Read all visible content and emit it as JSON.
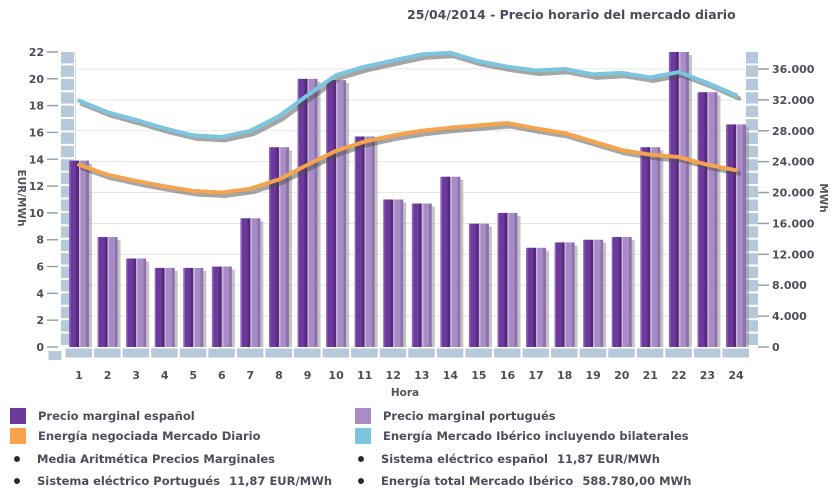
{
  "title": "25/04/2014 - Precio horario del mercado diario",
  "chart_data": {
    "type": "bar+line combo",
    "title": "25/04/2014 - Precio horario del mercado diario",
    "categories": [
      "1",
      "2",
      "3",
      "4",
      "5",
      "6",
      "7",
      "8",
      "9",
      "10",
      "11",
      "12",
      "13",
      "14",
      "15",
      "16",
      "17",
      "18",
      "19",
      "20",
      "21",
      "22",
      "23",
      "24"
    ],
    "x_axis": {
      "title": "Hora"
    },
    "left_axis": {
      "title": "EUR/MWh",
      "min": 0,
      "max": 22,
      "step": 2,
      "unit": "EUR/MWh"
    },
    "right_axis": {
      "title": "MWh",
      "max": 38200,
      "tick_values": [
        0,
        4000,
        8000,
        12000,
        16000,
        20000,
        24000,
        28000,
        32000,
        36000
      ],
      "tick_labels": [
        "0",
        "4.000",
        "8.000",
        "12.000",
        "16.000",
        "20.000",
        "24.000",
        "28.000",
        "32.000",
        "36.000"
      ]
    },
    "grid": true,
    "legend_position": "bottom",
    "series": [
      {
        "name": "Precio marginal español",
        "type": "bar",
        "axis": "left",
        "color": "#6C3A9A",
        "values": [
          13.9,
          8.2,
          6.6,
          5.9,
          5.9,
          6.0,
          9.6,
          14.9,
          20.0,
          19.9,
          15.7,
          11.0,
          10.7,
          12.7,
          9.2,
          10.0,
          7.4,
          7.8,
          8.0,
          8.2,
          14.9,
          22.0,
          19.0,
          16.6
        ]
      },
      {
        "name": "Precio marginal portugués",
        "type": "bar",
        "axis": "left",
        "color": "#A78CC6",
        "values": [
          13.9,
          8.2,
          6.6,
          5.9,
          5.9,
          6.0,
          9.6,
          14.9,
          20.0,
          19.9,
          15.7,
          11.0,
          10.7,
          12.7,
          9.2,
          10.0,
          7.4,
          7.8,
          8.0,
          8.2,
          14.9,
          22.0,
          19.0,
          16.6
        ]
      },
      {
        "name": "Energía negociada Mercado Diario",
        "type": "line",
        "axis": "right",
        "color": "#F5A34C",
        "values": [
          23600,
          22300,
          21500,
          20800,
          20200,
          20000,
          20500,
          21700,
          23600,
          25400,
          26600,
          27400,
          28000,
          28400,
          28700,
          29000,
          28300,
          27700,
          26600,
          25500,
          24900,
          24600,
          23600,
          22900
        ]
      },
      {
        "name": "Energía Mercado Ibérico incluyendo bilaterales",
        "type": "line",
        "axis": "right",
        "color": "#7CC5E0",
        "values": [
          31900,
          30400,
          29400,
          28300,
          27400,
          27200,
          28000,
          29900,
          32600,
          35200,
          36300,
          37100,
          37900,
          38100,
          37000,
          36300,
          35800,
          36000,
          35300,
          35500,
          34900,
          35600,
          34200,
          32600
        ]
      }
    ]
  },
  "notes": [
    {
      "text": "Media Aritmética Precios Marginales",
      "value": ""
    },
    {
      "text": "Sistema eléctrico español",
      "value": "11,87 EUR/MWh"
    },
    {
      "text": "Sistema eléctrico Portugués",
      "value": "11,87 EUR/MWh"
    },
    {
      "text": "Energía total Mercado Ibérico",
      "value": "588.780,00 MWh"
    }
  ],
  "colors": {
    "band": "#B5C9DB",
    "grid": "#E7E7E7",
    "text": "#4E4D5B",
    "shadow": "#4D4D4D"
  }
}
